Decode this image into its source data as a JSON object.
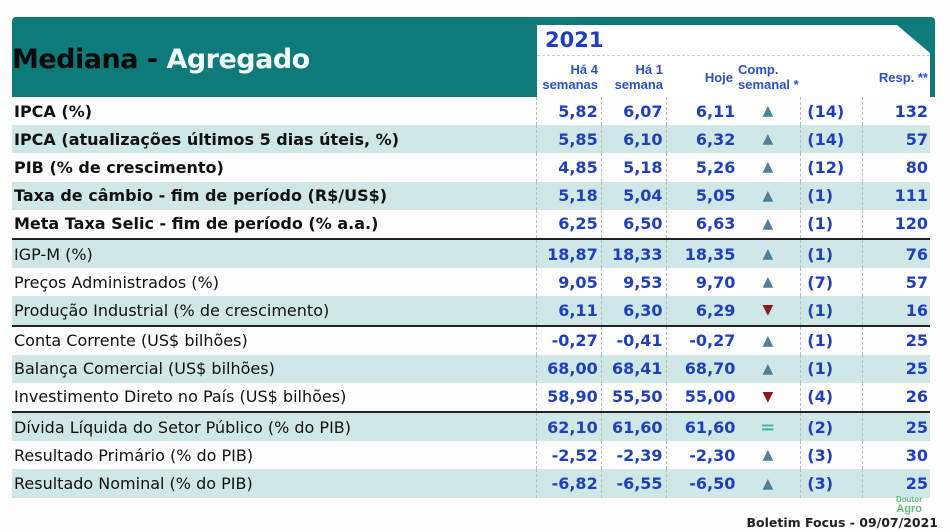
{
  "title": {
    "part1": "Mediana",
    "dash": " - ",
    "part2": "Agregado"
  },
  "year": "2021",
  "columns": {
    "h4": "Há 4 semanas",
    "h1": "Há 1 semana",
    "hoje": "Hoje",
    "comp": "Comp. semanal *",
    "resp": "Resp. **"
  },
  "colors": {
    "header": "#0e7a7a",
    "shade": "#cfe7e7",
    "value": "#1f3fbf"
  },
  "rows": [
    {
      "label": "IPCA (%)",
      "h4": "5,82",
      "h1": "6,07",
      "hoje": "6,11",
      "trend": "up",
      "comp": "(14)",
      "resp": "132"
    },
    {
      "label": "IPCA (atualizações últimos 5 dias úteis, %)",
      "h4": "5,85",
      "h1": "6,10",
      "hoje": "6,32",
      "trend": "up",
      "comp": "(14)",
      "resp": "57"
    },
    {
      "label": "PIB (% de crescimento)",
      "h4": "4,85",
      "h1": "5,18",
      "hoje": "5,26",
      "trend": "up",
      "comp": "(12)",
      "resp": "80"
    },
    {
      "label": "Taxa de câmbio - fim de período (R$/US$)",
      "h4": "5,18",
      "h1": "5,04",
      "hoje": "5,05",
      "trend": "up",
      "comp": "(1)",
      "resp": "111"
    },
    {
      "label": "Meta Taxa Selic - fim de período (% a.a.)",
      "h4": "6,25",
      "h1": "6,50",
      "hoje": "6,63",
      "trend": "up",
      "comp": "(1)",
      "resp": "120"
    },
    {
      "label": "IGP-M (%)",
      "h4": "18,87",
      "h1": "18,33",
      "hoje": "18,35",
      "trend": "up",
      "comp": "(1)",
      "resp": "76"
    },
    {
      "label": "Preços Administrados (%)",
      "h4": "9,05",
      "h1": "9,53",
      "hoje": "9,70",
      "trend": "up",
      "comp": "(7)",
      "resp": "57"
    },
    {
      "label": "Produção Industrial (% de crescimento)",
      "h4": "6,11",
      "h1": "6,30",
      "hoje": "6,29",
      "trend": "down",
      "comp": "(1)",
      "resp": "16"
    },
    {
      "label": "Conta Corrente (US$ bilhões)",
      "h4": "-0,27",
      "h1": "-0,41",
      "hoje": "-0,27",
      "trend": "up",
      "comp": "(1)",
      "resp": "25"
    },
    {
      "label": "Balança Comercial (US$ bilhões)",
      "h4": "68,00",
      "h1": "68,41",
      "hoje": "68,70",
      "trend": "up",
      "comp": "(1)",
      "resp": "25"
    },
    {
      "label": "Investimento Direto no País (US$ bilhões)",
      "h4": "58,90",
      "h1": "55,50",
      "hoje": "55,00",
      "trend": "down",
      "comp": "(4)",
      "resp": "26"
    },
    {
      "label": "Dívida Líquida do Setor Público (% do PIB)",
      "h4": "62,10",
      "h1": "61,60",
      "hoje": "61,60",
      "trend": "equal",
      "comp": "(2)",
      "resp": "25"
    },
    {
      "label": "Resultado Primário (% do PIB)",
      "h4": "-2,52",
      "h1": "-2,39",
      "hoje": "-2,30",
      "trend": "up",
      "comp": "(3)",
      "resp": "30"
    },
    {
      "label": "Resultado Nominal (% do PIB)",
      "h4": "-6,82",
      "h1": "-6,55",
      "hoje": "-6,50",
      "trend": "up",
      "comp": "(3)",
      "resp": "25"
    }
  ],
  "footer": "Boletim Focus - 09/07/2021",
  "logo": "Doutor Agro"
}
